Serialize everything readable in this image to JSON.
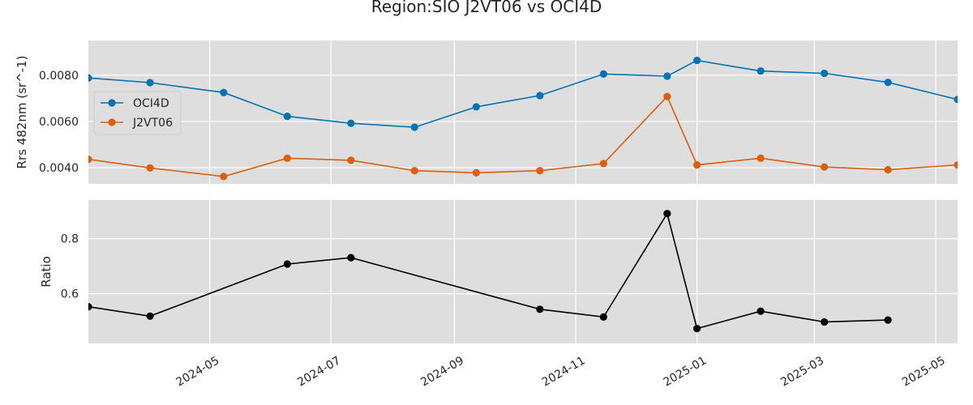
{
  "title": "Region:SIO J2VT06 vs OCI4D",
  "chart_data": [
    {
      "type": "line",
      "ylabel": "Rrs 482nm (sr^-1)",
      "xlabel": "",
      "xlim": [
        "2024-03-01",
        "2025-05-12"
      ],
      "ylim": [
        0.0033,
        0.0095
      ],
      "yticks": [
        0.004,
        0.006,
        0.008
      ],
      "ytick_labels": [
        "0.0040",
        "0.0060",
        "0.0080"
      ],
      "grid": true,
      "legend_position": "left",
      "series": [
        {
          "name": "OCI4D",
          "color": "#0173b2",
          "x": [
            "2024-03-01",
            "2024-04-01",
            "2024-05-08",
            "2024-06-09",
            "2024-07-11",
            "2024-08-12",
            "2024-09-12",
            "2024-10-14",
            "2024-11-15",
            "2024-12-17",
            "2025-01-01",
            "2025-02-02",
            "2025-03-06",
            "2025-04-07",
            "2025-05-12"
          ],
          "y": [
            0.00788,
            0.00768,
            0.00725,
            0.00622,
            0.00592,
            0.00575,
            0.00663,
            0.00712,
            0.00805,
            0.00796,
            0.00864,
            0.00818,
            0.00808,
            0.00769,
            0.00695
          ]
        },
        {
          "name": "J2VT06",
          "color": "#de5f0a",
          "x": [
            "2024-03-01",
            "2024-04-01",
            "2024-05-08",
            "2024-06-09",
            "2024-07-11",
            "2024-08-12",
            "2024-09-12",
            "2024-10-14",
            "2024-11-15",
            "2024-12-17",
            "2025-01-01",
            "2025-02-02",
            "2025-03-06",
            "2025-04-07",
            "2025-05-12"
          ],
          "y": [
            0.00436,
            0.00399,
            0.00362,
            0.00441,
            0.00432,
            0.00387,
            0.00378,
            0.00387,
            0.00418,
            0.00708,
            0.00412,
            0.00441,
            0.00403,
            0.00391,
            0.00412
          ]
        }
      ]
    },
    {
      "type": "line",
      "ylabel": "Ratio",
      "xlabel": "",
      "xlim": [
        "2024-03-01",
        "2025-05-12"
      ],
      "ylim": [
        0.42,
        0.94
      ],
      "yticks": [
        0.6,
        0.8
      ],
      "ytick_labels": [
        "0.6",
        "0.8"
      ],
      "xticks": [
        "2024-05-01",
        "2024-07-01",
        "2024-09-01",
        "2024-11-01",
        "2025-01-01",
        "2025-03-01",
        "2025-05-01"
      ],
      "xtick_labels": [
        "2024-05",
        "2024-07",
        "2024-09",
        "2024-11",
        "2025-01",
        "2025-03",
        "2025-05"
      ],
      "grid": true,
      "series": [
        {
          "color": "#000000",
          "x": [
            "2024-03-01",
            "2024-04-01",
            "2024-06-09",
            "2024-07-11",
            "2024-10-14",
            "2024-11-15",
            "2024-12-17",
            "2025-01-01",
            "2025-02-02",
            "2025-03-06",
            "2025-04-07"
          ],
          "y": [
            0.553,
            0.519,
            0.708,
            0.731,
            0.544,
            0.516,
            0.891,
            0.474,
            0.537,
            0.498,
            0.505
          ]
        }
      ]
    }
  ]
}
